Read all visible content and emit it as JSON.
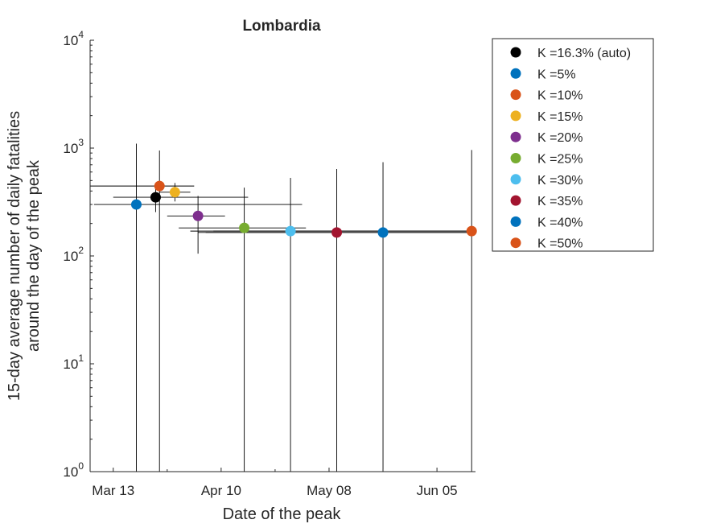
{
  "chart_data": {
    "type": "scatter",
    "title": "Lombardia",
    "xlabel": "Date of the peak",
    "ylabel_lines": [
      "15-day average number of daily fatalities",
      "around the day of the peak"
    ],
    "x_scale": "date",
    "y_scale": "log",
    "xlim": [
      "2020-03-07",
      "2020-06-15"
    ],
    "ylim": [
      1,
      10000
    ],
    "x_ticks": [
      {
        "date": "2020-03-13",
        "label": "Mar 13"
      },
      {
        "date": "2020-04-10",
        "label": "Apr 10"
      },
      {
        "date": "2020-05-08",
        "label": "May 08"
      },
      {
        "date": "2020-06-05",
        "label": "Jun 05"
      }
    ],
    "x_minor_tick_dates": [
      "2020-03-27",
      "2020-04-24",
      "2020-05-22"
    ],
    "y_ticks": [
      {
        "value": 1,
        "base": "10",
        "exp": "0"
      },
      {
        "value": 10,
        "base": "10",
        "exp": "1"
      },
      {
        "value": 100,
        "base": "10",
        "exp": "2"
      },
      {
        "value": 1000,
        "base": "10",
        "exp": "3"
      },
      {
        "value": 10000,
        "base": "10",
        "exp": "4"
      }
    ],
    "grid": false,
    "legend_position": "outside-right",
    "series": [
      {
        "name": "K =16.3% (auto)",
        "color": "#000000",
        "x": "2020-03-24",
        "y": 350,
        "x_err": [
          "2020-03-13",
          "2020-04-17"
        ],
        "y_err": [
          255,
          462
        ]
      },
      {
        "name": "K =5%",
        "color": "#0072BD",
        "x": "2020-03-19",
        "y": 300,
        "x_err": [
          "2020-03-08",
          "2020-05-01"
        ],
        "y_err": [
          1,
          1100
        ]
      },
      {
        "name": "K =10%",
        "color": "#D95319",
        "x": "2020-03-25",
        "y": 445,
        "x_err": [
          "2020-03-06",
          "2020-04-03"
        ],
        "y_err": [
          1,
          950
        ]
      },
      {
        "name": "K =15%",
        "color": "#EDB120",
        "x": "2020-03-29",
        "y": 390,
        "x_err": [
          "2020-03-25",
          "2020-04-02"
        ],
        "y_err": [
          320,
          475
        ]
      },
      {
        "name": "K =20%",
        "color": "#7E2F8E",
        "x": "2020-04-04",
        "y": 235,
        "x_err": [
          "2020-03-27",
          "2020-04-11"
        ],
        "y_err": [
          105,
          360
        ]
      },
      {
        "name": "K =25%",
        "color": "#77AC30",
        "x": "2020-04-16",
        "y": 182,
        "x_err": [
          "2020-03-30",
          "2020-05-02"
        ],
        "y_err": [
          1,
          430
        ]
      },
      {
        "name": "K =30%",
        "color": "#4DBEEE",
        "x": "2020-04-28",
        "y": 170,
        "x_err": [
          "2020-04-02",
          "2020-06-15"
        ],
        "y_err": [
          1,
          530
        ]
      },
      {
        "name": "K =35%",
        "color": "#A2142F",
        "x": "2020-05-10",
        "y": 165,
        "x_err": [
          "2020-04-04",
          "2020-06-15"
        ],
        "y_err": [
          1,
          640
        ]
      },
      {
        "name": "K =40%",
        "color": "#0072BD",
        "x": "2020-05-22",
        "y": 165,
        "x_err": [
          "2020-04-06",
          "2020-06-15"
        ],
        "y_err": [
          1,
          740
        ]
      },
      {
        "name": "K =50%",
        "color": "#D95319",
        "x": "2020-06-14",
        "y": 170,
        "x_err": [
          "2020-04-08",
          "2020-06-15"
        ],
        "y_err": [
          1,
          960
        ]
      }
    ]
  }
}
